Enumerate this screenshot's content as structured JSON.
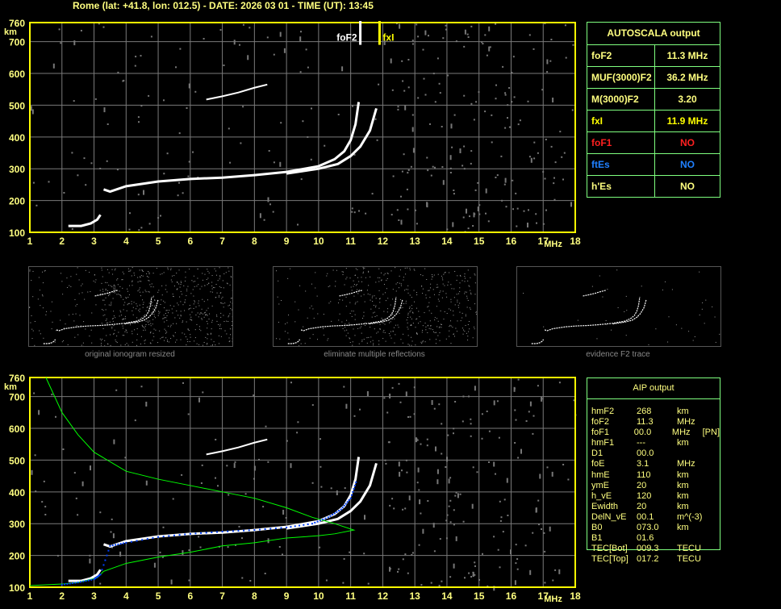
{
  "header": {
    "title": "Rome (lat: +41.8, lon: 012.5) - DATE: 2026 03 01 - TIME (UT): 13:45"
  },
  "colors": {
    "frame": "#ffff00",
    "grid": "#7a7a7a",
    "trace": "#ffffff",
    "profile": "#00ff00",
    "points": "#0040ff",
    "text": "#ffff80",
    "table_border": "#7fff7f",
    "foF1": "#ff2020",
    "ftEs": "#2080ff"
  },
  "chart_data": [
    {
      "type": "scatter",
      "name_id": "top-ionogram",
      "xlabel": "MHz",
      "ylabel": "km",
      "xlim": [
        1,
        18
      ],
      "ylim": [
        100,
        760
      ],
      "x_ticks": [
        "1",
        "2",
        "3",
        "4",
        "5",
        "6",
        "7",
        "8",
        "9",
        "10",
        "11",
        "12",
        "13",
        "14",
        "15",
        "16",
        "17",
        "18"
      ],
      "y_ticks": [
        "100",
        "200",
        "300",
        "400",
        "500",
        "600",
        "700",
        "760"
      ],
      "grid": true,
      "markers": [
        {
          "label": "foF2",
          "x": 11.3,
          "color": "#ffffff"
        },
        {
          "label": "fxI",
          "x": 11.9,
          "color": "#ffff00"
        }
      ],
      "traces": [
        {
          "x": [
            2.2,
            2.6,
            2.9,
            3.1,
            3.2
          ],
          "y": [
            120,
            120,
            128,
            140,
            155
          ]
        },
        {
          "x": [
            3.3,
            3.5,
            4,
            5,
            6,
            7,
            8,
            9,
            10,
            10.5,
            10.8,
            11,
            11.15,
            11.25
          ],
          "y": [
            235,
            228,
            245,
            260,
            268,
            272,
            280,
            290,
            308,
            330,
            355,
            390,
            440,
            510
          ]
        },
        {
          "x": [
            9,
            10,
            10.6,
            11,
            11.3,
            11.6,
            11.8
          ],
          "y": [
            285,
            300,
            315,
            340,
            370,
            420,
            490
          ]
        },
        {
          "x": [
            6.5,
            7,
            7.5,
            8,
            8.4
          ],
          "y": [
            518,
            528,
            540,
            555,
            565
          ]
        }
      ]
    },
    {
      "type": "scatter",
      "name_id": "bottom-ionogram",
      "xlabel": "MHz",
      "ylabel": "km",
      "xlim": [
        1,
        18
      ],
      "ylim": [
        100,
        760
      ],
      "x_ticks": [
        "1",
        "2",
        "3",
        "4",
        "5",
        "6",
        "7",
        "8",
        "9",
        "10",
        "11",
        "12",
        "13",
        "14",
        "15",
        "16",
        "17",
        "18"
      ],
      "y_ticks": [
        "100",
        "200",
        "300",
        "400",
        "500",
        "600",
        "700",
        "760"
      ],
      "grid": true,
      "profile": {
        "x": [
          1.5,
          2,
          2.5,
          3,
          4,
          5,
          6,
          7,
          8,
          9,
          9.8,
          10.5,
          11.1,
          10.5,
          10,
          9,
          8,
          7,
          6,
          5,
          4,
          3.3,
          3.1,
          2.5,
          2,
          1
        ],
        "y": [
          760,
          650,
          580,
          525,
          465,
          440,
          420,
          400,
          380,
          350,
          320,
          300,
          280,
          268,
          262,
          255,
          240,
          230,
          210,
          195,
          175,
          150,
          130,
          115,
          110,
          105
        ]
      },
      "fit": {
        "x": [
          2,
          2.5,
          3,
          3.2,
          3.5,
          4,
          5,
          6,
          7,
          8,
          9,
          9.8,
          10.3,
          10.7,
          11,
          11.2
        ],
        "y": [
          108,
          115,
          125,
          140,
          230,
          240,
          258,
          268,
          275,
          280,
          288,
          300,
          320,
          345,
          380,
          440
        ]
      }
    }
  ],
  "thumbnails": [
    {
      "caption": "original ionogram resized"
    },
    {
      "caption": "eliminate multiple reflections"
    },
    {
      "caption": "evidence F2 trace"
    }
  ],
  "autoscala": {
    "title": "AUTOSCALA output",
    "rows": [
      {
        "label": "foF2",
        "value": "11.3 MHz",
        "color": "#ffff80"
      },
      {
        "label": "MUF(3000)F2",
        "value": "36.2 MHz",
        "color": "#ffff80"
      },
      {
        "label": "M(3000)F2",
        "value": "3.20",
        "color": "#ffff80"
      },
      {
        "label": "fxI",
        "value": "11.9 MHz",
        "color": "#ffff00"
      },
      {
        "label": "foF1",
        "value": "NO",
        "color": "#ff2020"
      },
      {
        "label": "ftEs",
        "value": "NO",
        "color": "#2080ff"
      },
      {
        "label": "h'Es",
        "value": "NO",
        "color": "#ffff80"
      }
    ]
  },
  "aip": {
    "title": "AIP output",
    "rows": [
      [
        "hmF2",
        "268",
        "km",
        ""
      ],
      [
        "foF2",
        "11.3",
        "MHz",
        ""
      ],
      [
        "foF1",
        "00.0",
        "MHz",
        "[PN]"
      ],
      [
        "hmF1",
        "---",
        "km",
        ""
      ],
      [
        "D1",
        "00.0",
        "",
        ""
      ],
      [
        "foE",
        "3.1",
        "MHz",
        ""
      ],
      [
        "hmE",
        "110",
        "km",
        ""
      ],
      [
        "ymE",
        "20",
        "km",
        ""
      ],
      [
        "h_vE",
        "120",
        "km",
        ""
      ],
      [
        "Ewidth",
        "20",
        "km",
        ""
      ],
      [
        "DelN_vE",
        "00.1",
        "m^(-3)",
        ""
      ],
      [
        "B0",
        "073.0",
        "km",
        ""
      ],
      [
        "B1",
        "01.6",
        "",
        ""
      ],
      [
        "TEC[Bot]",
        "009.3",
        "TECU",
        ""
      ],
      [
        "TEC[Top]",
        "017.2",
        "TECU",
        ""
      ]
    ]
  }
}
